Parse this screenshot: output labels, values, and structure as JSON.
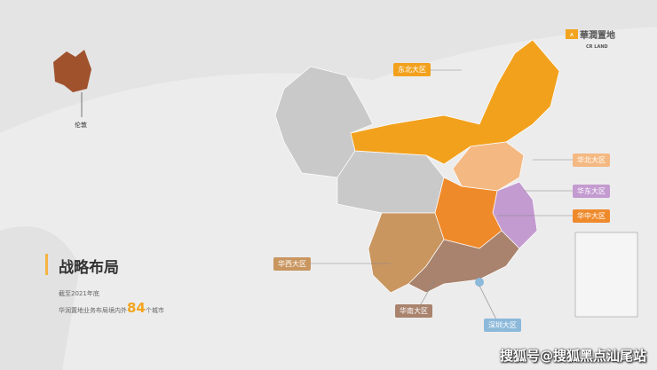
{
  "logo": {
    "cn": "華潤置地",
    "en": "CR LAND",
    "mark": "ᨓ"
  },
  "title": "战略布局",
  "subtitle_line1": "截至2021年底",
  "subtitle_prefix": "华润置地业务布局境内外",
  "city_count": "84",
  "subtitle_suffix": "个城市",
  "london": "伦敦",
  "regions": [
    {
      "name": "东北大区",
      "color": "#f2a11d"
    },
    {
      "name": "华北大区",
      "color": "#f4b982"
    },
    {
      "name": "华东大区",
      "color": "#c39bd0"
    },
    {
      "name": "华中大区",
      "color": "#ef8a2b"
    },
    {
      "name": "华西大区",
      "color": "#c99660"
    },
    {
      "name": "华南大区",
      "color": "#a9836d"
    },
    {
      "name": "深圳大区",
      "color": "#8cb9da"
    }
  ],
  "other_color": "#c9c9c9",
  "watermark": "搜狐号@搜狐黑点汕尾站"
}
